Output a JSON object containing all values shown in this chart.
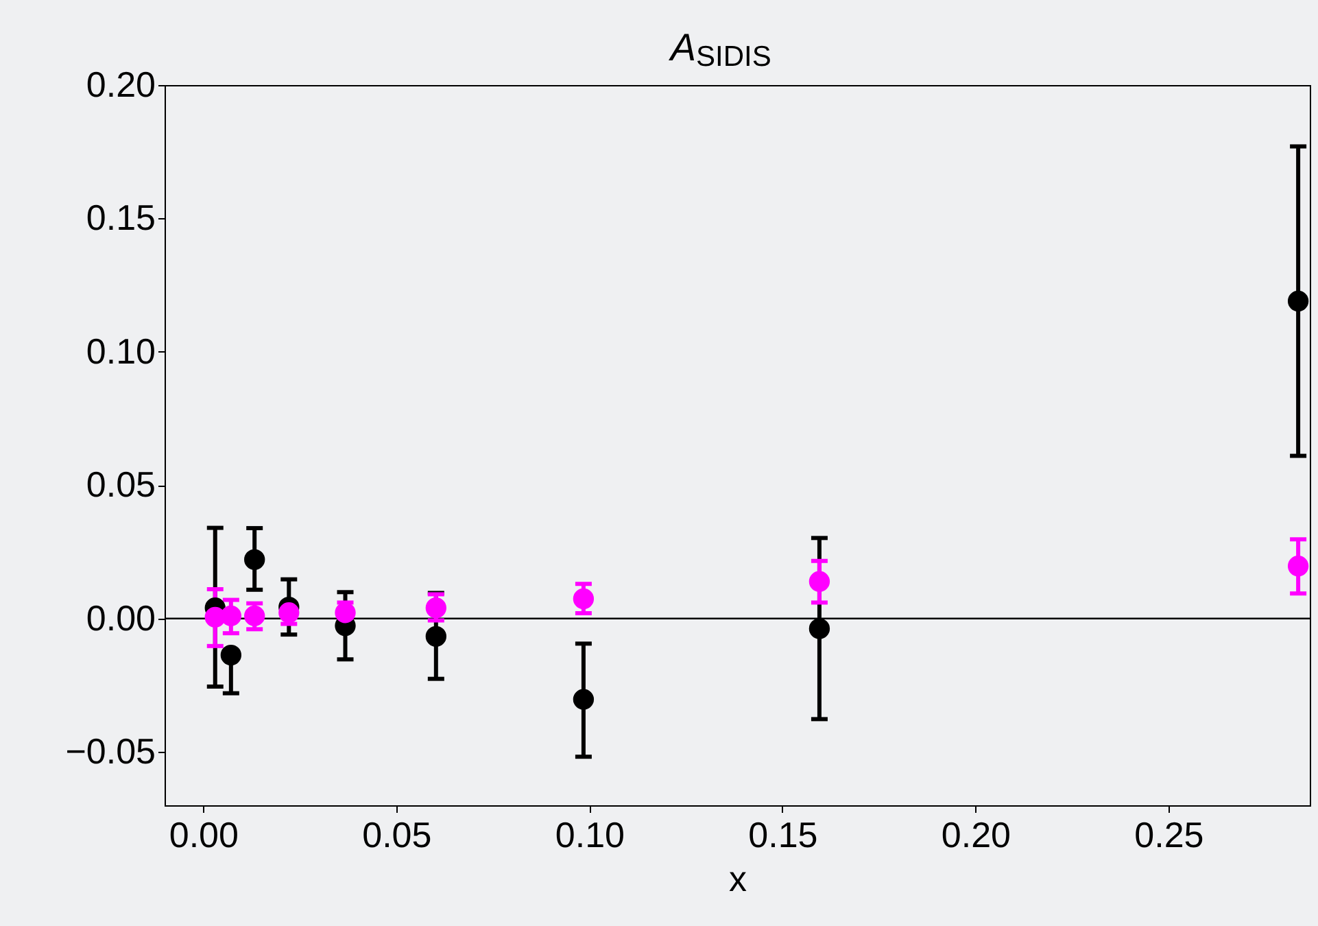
{
  "chart_data": {
    "type": "scatter",
    "title": "A$_{SIDIS}$",
    "xlabel": "x",
    "x": [
      0.0031,
      0.0072,
      0.0133,
      0.0222,
      0.0368,
      0.0603,
      0.0985,
      0.1596,
      0.2836
    ],
    "series": [
      {
        "color": "#000000",
        "values": [
          0.004,
          -0.0137,
          0.0221,
          0.0043,
          -0.0027,
          -0.0067,
          -0.0303,
          -0.0038,
          0.119
        ],
        "errors": [
          [
            -0.0255,
            0.034
          ],
          [
            -0.028,
            -0.0137
          ],
          [
            0.0108,
            0.0339
          ],
          [
            -0.006,
            0.0147
          ],
          [
            -0.0153,
            0.0099
          ],
          [
            -0.0226,
            0.0096
          ],
          [
            -0.0518,
            -0.0094
          ],
          [
            -0.0377,
            0.0302
          ],
          [
            0.061,
            0.177
          ]
        ]
      },
      {
        "color": "#ff00ff",
        "values": [
          0.0005,
          0.001,
          0.001,
          0.0022,
          0.0022,
          0.004,
          0.0074,
          0.0139,
          0.0197
        ],
        "errors": [
          [
            -0.0103,
            0.011
          ],
          [
            -0.0055,
            0.007
          ],
          [
            -0.004,
            0.0057
          ],
          [
            -0.002,
            0.006
          ],
          [
            -0.002,
            0.006
          ],
          [
            -0.0007,
            0.0091
          ],
          [
            0.002,
            0.013
          ],
          [
            0.006,
            0.0216
          ],
          [
            0.0094,
            0.0297
          ]
        ]
      }
    ],
    "xlim": [
      -0.01,
      0.2866
    ],
    "ylim": [
      -0.07,
      0.2
    ],
    "xticks": [
      {
        "value": 0,
        "label": "0.00"
      },
      0.05,
      {
        "value": 0.1,
        "label": "0.10"
      },
      0.15,
      {
        "value": 0.2,
        "label": "0.20"
      },
      0.25
    ],
    "yticks": [
      {
        "value": -0.05,
        "label": "−0.05"
      },
      {
        "value": 0,
        "label": "0.00"
      },
      0.05,
      {
        "value": 0.1,
        "label": "0.10"
      },
      0.15,
      {
        "value": 0.2,
        "label": "0.20"
      }
    ],
    "ref_lines": [
      {
        "axis": "y",
        "value": 0,
        "color": "#000000"
      }
    ],
    "grid": false,
    "marker": "circle"
  }
}
